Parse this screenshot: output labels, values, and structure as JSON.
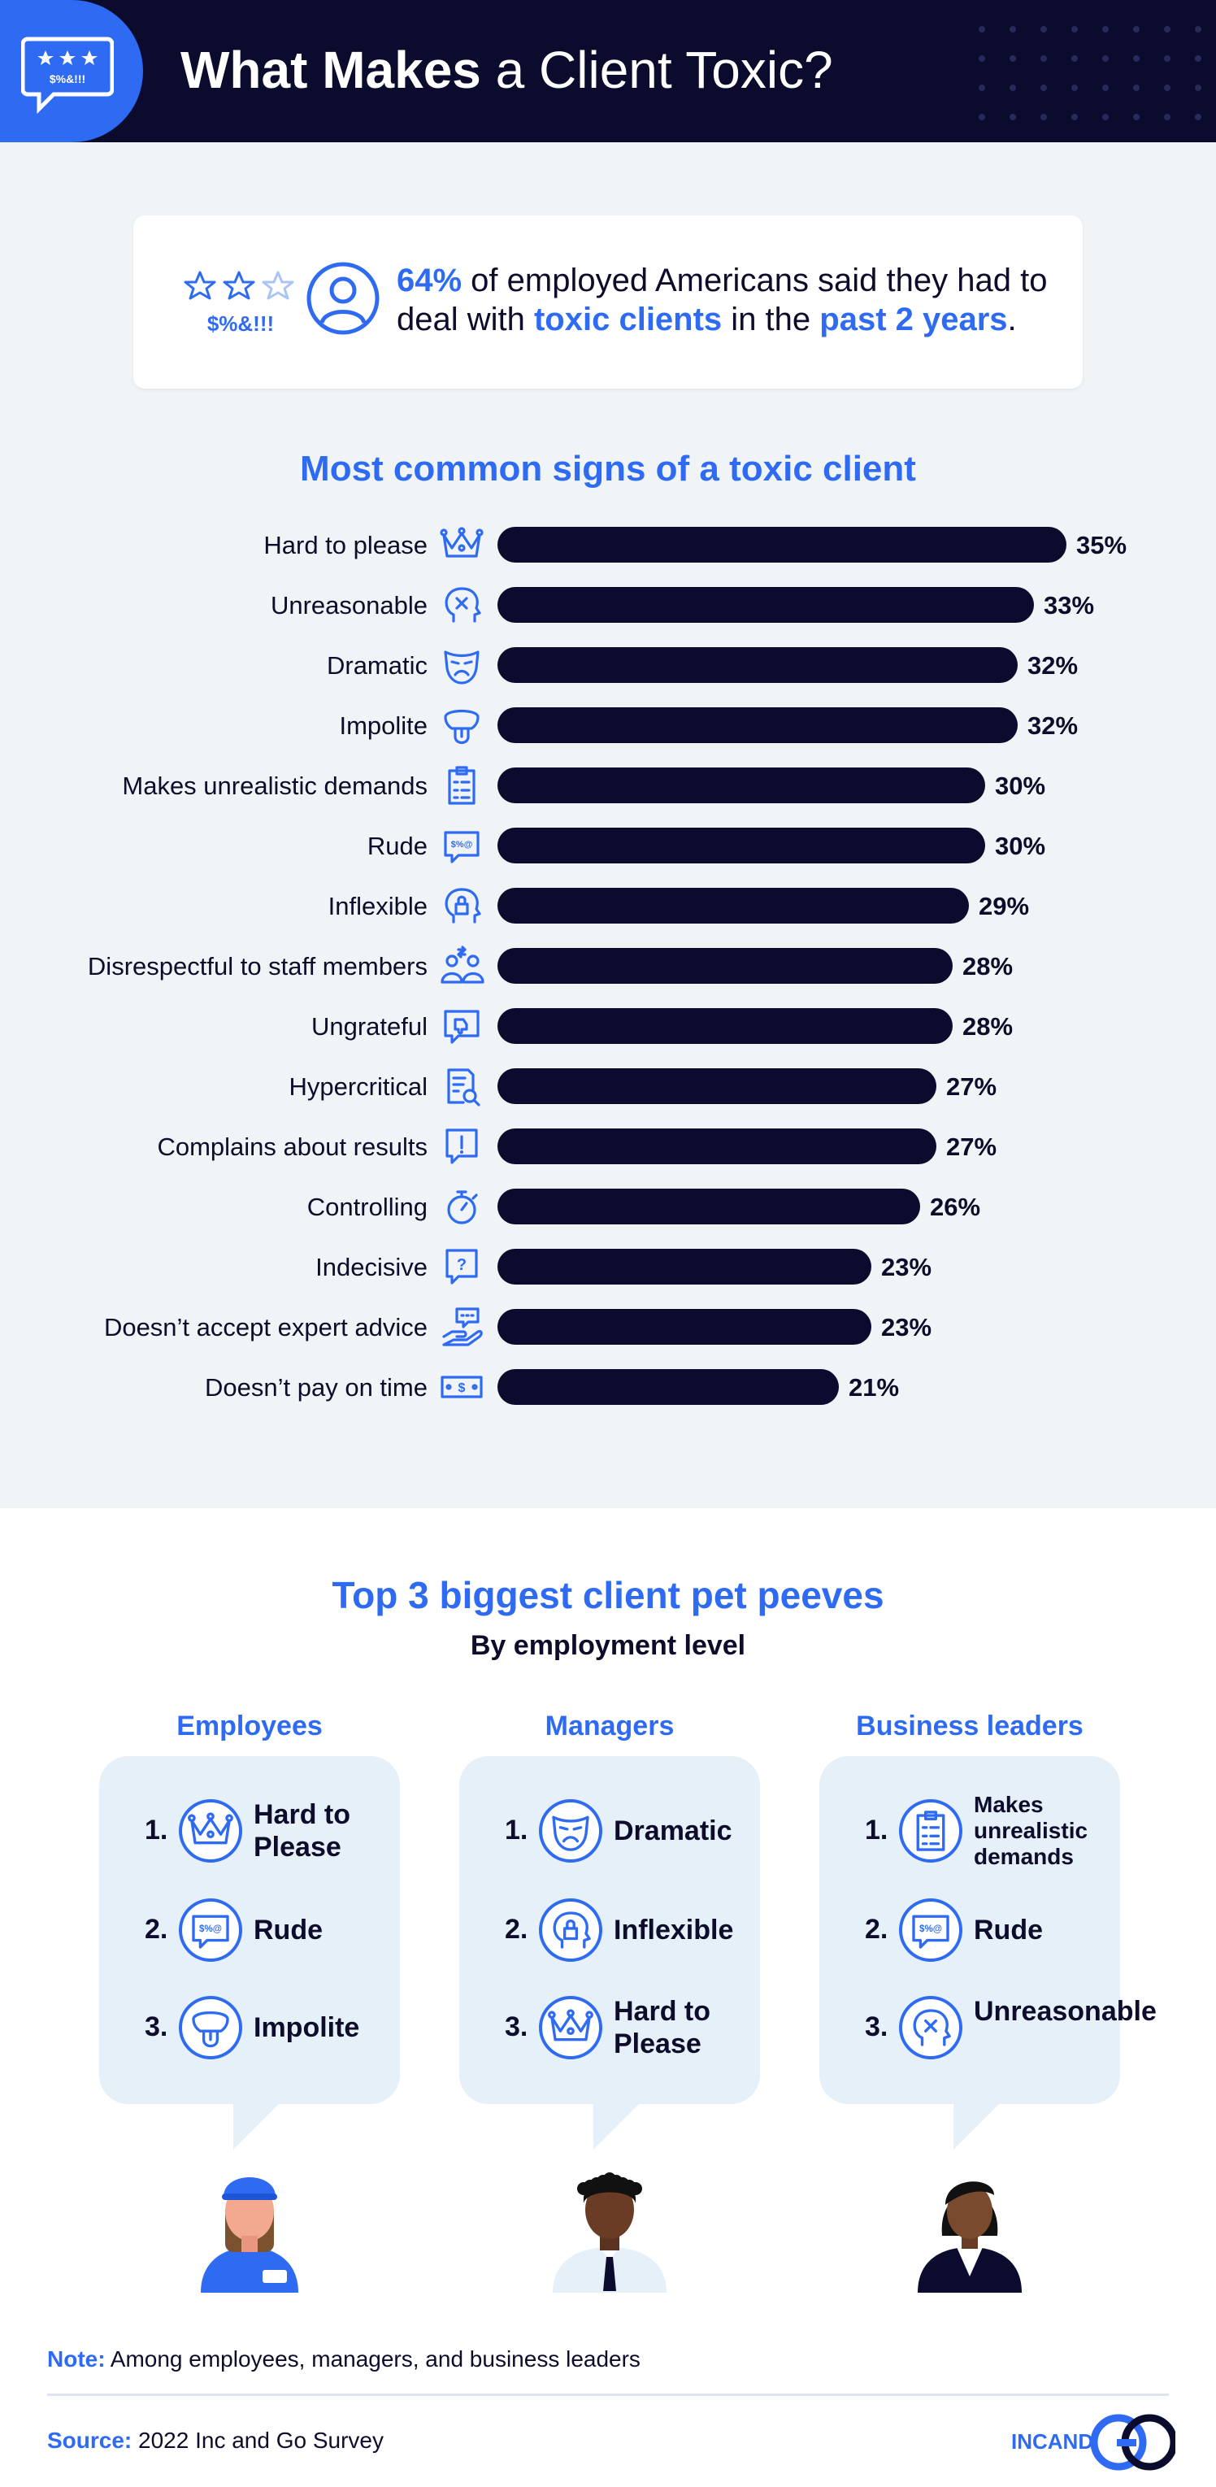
{
  "header": {
    "title_bold": "What Makes",
    "title_rest": " a Client Toxic?",
    "icon_text": "$%&!!!"
  },
  "stat": {
    "stars_text": "$%&!!!",
    "pct": "64%",
    "text_1": " of employed Americans said they had to deal with ",
    "highlight_1": "toxic clients",
    "text_2": " in the ",
    "highlight_2": "past 2 years",
    "text_3": "."
  },
  "chart_data": {
    "type": "bar",
    "title": "Most common signs of a toxic client",
    "categories": [
      "Hard to please",
      "Unreasonable",
      "Dramatic",
      "Impolite",
      "Makes unrealistic demands",
      "Rude",
      "Inflexible",
      "Disrespectful to staff members",
      "Ungrateful",
      "Hypercritical",
      "Complains about results",
      "Controlling",
      "Indecisive",
      "Doesn’t accept expert advice",
      "Doesn’t pay on time"
    ],
    "values": [
      35,
      33,
      32,
      32,
      30,
      30,
      29,
      28,
      28,
      27,
      27,
      26,
      23,
      23,
      21
    ],
    "value_labels": [
      "35%",
      "33%",
      "32%",
      "32%",
      "30%",
      "30%",
      "29%",
      "28%",
      "28%",
      "27%",
      "27%",
      "26%",
      "23%",
      "23%",
      "21%"
    ],
    "icons": [
      "crown-icon",
      "head-x-icon",
      "mask-icon",
      "tongue-icon",
      "checklist-icon",
      "speech-symbols-icon",
      "head-lock-icon",
      "people-arrows-icon",
      "speech-thumbsdown-icon",
      "document-magnifier-icon",
      "speech-exclamation-icon",
      "stopwatch-icon",
      "speech-question-icon",
      "hand-speech-icon",
      "dollar-bill-icon"
    ],
    "orientation": "horizontal",
    "xlim": [
      0,
      35
    ],
    "grid": false,
    "colors": {
      "bar": "#0b0b2e",
      "icon": "#2f6bf2"
    }
  },
  "peeves": {
    "title": "Top 3 biggest client pet peeves",
    "subtitle": "By employment level",
    "columns": [
      {
        "heading": "Employees",
        "items": [
          {
            "rank": "1.",
            "label": "Hard to Please",
            "icon": "crown-icon"
          },
          {
            "rank": "2.",
            "label": "Rude",
            "icon": "speech-symbols-icon"
          },
          {
            "rank": "3.",
            "label": "Impolite",
            "icon": "tongue-icon"
          }
        ],
        "avatar": "employee-avatar"
      },
      {
        "heading": "Managers",
        "items": [
          {
            "rank": "1.",
            "label": "Dramatic",
            "icon": "mask-icon"
          },
          {
            "rank": "2.",
            "label": "Inflexible",
            "icon": "head-lock-icon"
          },
          {
            "rank": "3.",
            "label": "Hard to Please",
            "icon": "crown-icon"
          }
        ],
        "avatar": "manager-avatar"
      },
      {
        "heading": "Business leaders",
        "items": [
          {
            "rank": "1.",
            "label": "Makes unrealistic demands",
            "icon": "checklist-icon"
          },
          {
            "rank": "2.",
            "label": "Rude",
            "icon": "speech-symbols-icon"
          },
          {
            "rank": "3.",
            "label": "Unreasonable",
            "icon": "head-x-icon"
          }
        ],
        "avatar": "business-leader-avatar"
      }
    ]
  },
  "footer": {
    "note_label": "Note:",
    "note_text": " Among employees, managers, and business leaders",
    "source_label": "Source:",
    "source_text": " 2022 Inc and Go Survey",
    "logo_text": "INCAND"
  },
  "colors": {
    "accent": "#2f6bf2",
    "navy": "#0b0b2e",
    "panel": "#f0f4f6",
    "bubble": "#e6f0f8"
  }
}
